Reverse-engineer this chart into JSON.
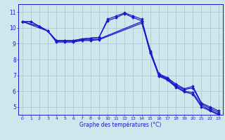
{
  "background_color": "#cce8ec",
  "grid_color": "#b0c8cc",
  "line_color": "#1a1acc",
  "xlabel": "Graphe des températures (°C)",
  "xlim": [
    -0.5,
    23.5
  ],
  "ylim": [
    4.5,
    11.5
  ],
  "yticks": [
    5,
    6,
    7,
    8,
    9,
    10,
    11
  ],
  "xticks": [
    0,
    1,
    2,
    3,
    4,
    5,
    6,
    7,
    8,
    9,
    10,
    11,
    12,
    13,
    14,
    15,
    16,
    17,
    18,
    19,
    20,
    21,
    22,
    23
  ],
  "series1_x": [
    0,
    1,
    2,
    3,
    4,
    5,
    6,
    7,
    8,
    9,
    10,
    11,
    12,
    13,
    14,
    15,
    16,
    17,
    18,
    19,
    20,
    21,
    22,
    23
  ],
  "series1_y": [
    10.4,
    10.4,
    10.1,
    9.8,
    9.2,
    9.2,
    9.2,
    9.3,
    9.35,
    9.4,
    10.55,
    10.75,
    10.95,
    10.75,
    10.55,
    8.55,
    7.1,
    6.85,
    6.45,
    6.15,
    6.3,
    5.25,
    5.0,
    4.75
  ],
  "series2_x": [
    0,
    1,
    2,
    3,
    4,
    5,
    6,
    7,
    8,
    9,
    10,
    11,
    12,
    13,
    14,
    15,
    16,
    17,
    18,
    19,
    20,
    21,
    22,
    23
  ],
  "series2_y": [
    10.4,
    10.4,
    10.1,
    9.8,
    9.2,
    9.2,
    9.2,
    9.3,
    9.35,
    9.4,
    10.45,
    10.65,
    10.9,
    10.65,
    10.45,
    8.45,
    7.05,
    6.8,
    6.35,
    6.1,
    6.2,
    5.2,
    4.9,
    4.65
  ],
  "series3_x": [
    0,
    2,
    3,
    4,
    5,
    6,
    7,
    8,
    9,
    14,
    15,
    16,
    17,
    18,
    19,
    20,
    21,
    22,
    23
  ],
  "series3_y": [
    10.4,
    10.1,
    9.8,
    9.15,
    9.15,
    9.15,
    9.25,
    9.25,
    9.3,
    10.4,
    8.4,
    7.0,
    6.75,
    6.3,
    6.0,
    5.9,
    5.1,
    4.8,
    4.55
  ],
  "series4_x": [
    0,
    3,
    4,
    5,
    6,
    7,
    8,
    9,
    14,
    16,
    17,
    18,
    19,
    20,
    21,
    22,
    23
  ],
  "series4_y": [
    10.4,
    9.8,
    9.1,
    9.1,
    9.1,
    9.2,
    9.2,
    9.25,
    10.3,
    6.95,
    6.7,
    6.25,
    5.95,
    5.8,
    5.0,
    4.75,
    4.5
  ]
}
